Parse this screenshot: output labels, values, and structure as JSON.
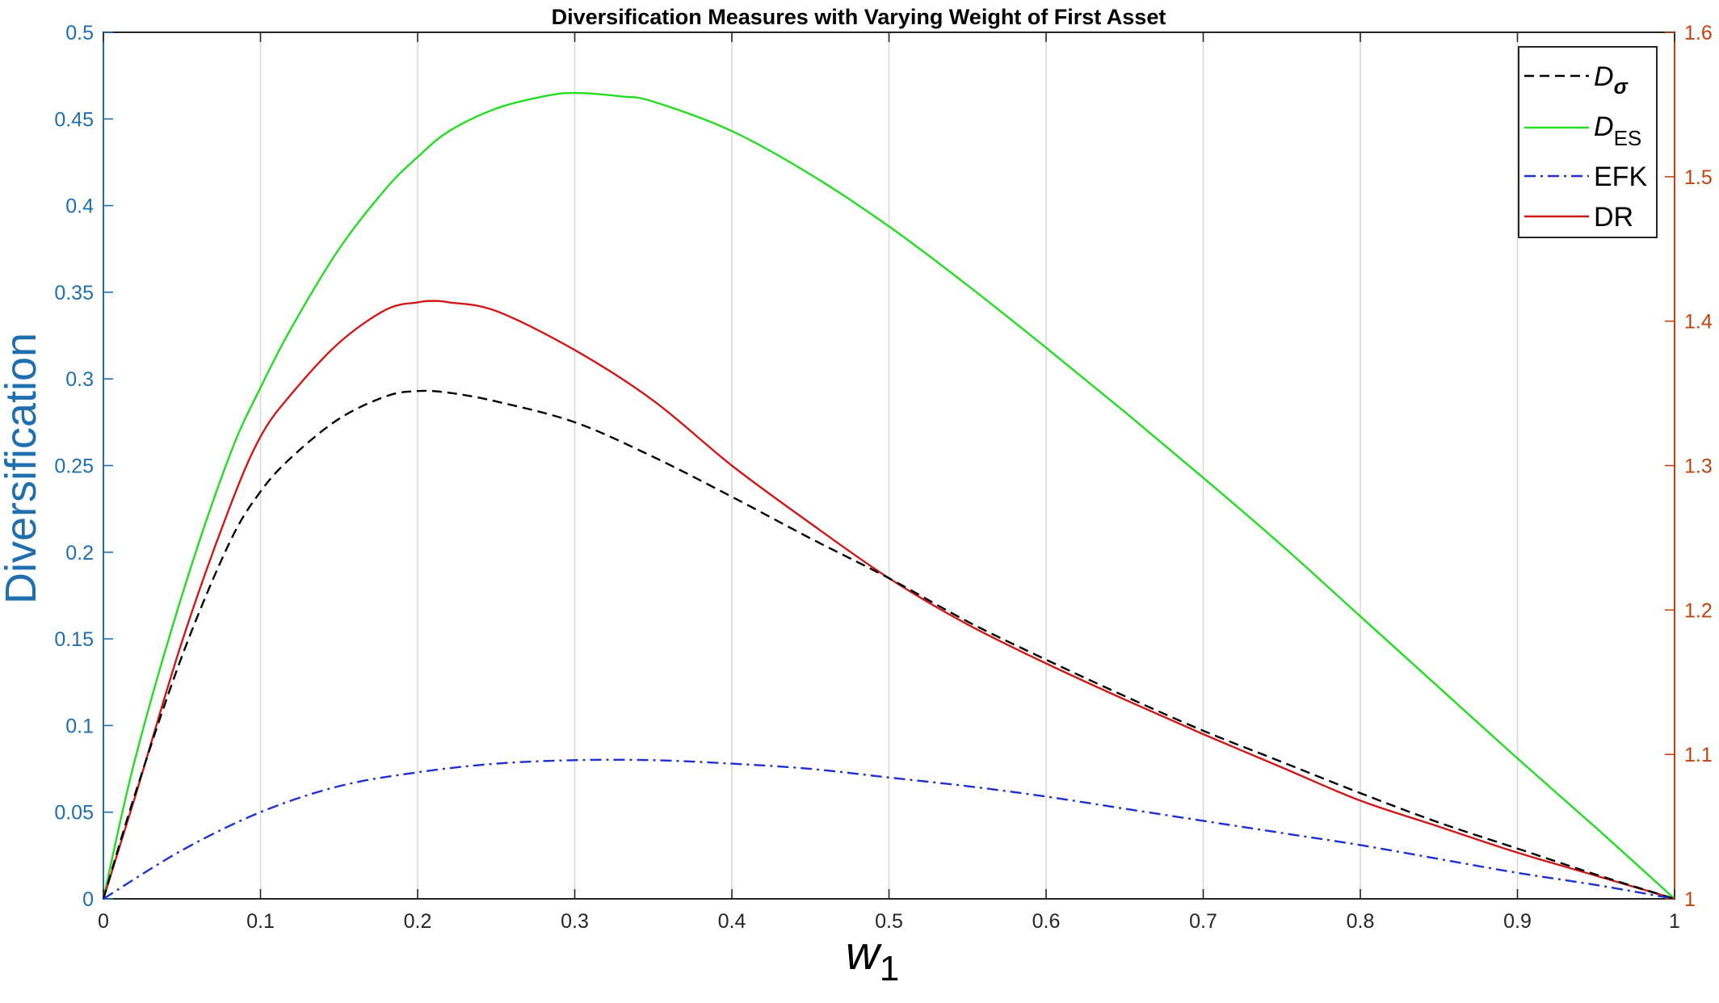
{
  "chart_data": {
    "type": "line",
    "title": "Diversification Measures with Varying Weight of First Asset",
    "xlabel": {
      "base": "w",
      "sub": "1"
    },
    "ylabel": "Diversification",
    "xlim": [
      0,
      1
    ],
    "ylim": [
      0,
      0.5
    ],
    "y2lim": [
      1,
      1.6
    ],
    "grid": "vertical",
    "legend_position": "top-right",
    "x_ticks": [
      "0",
      "0.1",
      "0.2",
      "0.3",
      "0.4",
      "0.5",
      "0.6",
      "0.7",
      "0.8",
      "0.9",
      "1"
    ],
    "y_ticks": [
      "0",
      "0.05",
      "0.1",
      "0.15",
      "0.2",
      "0.25",
      "0.3",
      "0.35",
      "0.4",
      "0.45",
      "0.5"
    ],
    "y2_ticks": [
      "1",
      "1.1",
      "1.2",
      "1.3",
      "1.4",
      "1.5",
      "1.6"
    ],
    "axis_colors": {
      "left": "#1f6fb0",
      "right": "#c1440e"
    },
    "series": [
      {
        "name": "D_σ",
        "label_base": "D",
        "label_sub": "σ",
        "color": "#000000",
        "dash": "dashed",
        "axis": "left",
        "x": [
          0,
          0.02,
          0.05,
          0.08,
          0.1,
          0.12,
          0.15,
          0.18,
          0.2,
          0.22,
          0.25,
          0.3,
          0.35,
          0.4,
          0.45,
          0.5,
          0.55,
          0.6,
          0.65,
          0.7,
          0.75,
          0.8,
          0.85,
          0.9,
          0.95,
          1.0
        ],
        "values": [
          0,
          0.06,
          0.14,
          0.205,
          0.235,
          0.255,
          0.277,
          0.29,
          0.293,
          0.292,
          0.287,
          0.275,
          0.255,
          0.232,
          0.208,
          0.185,
          0.16,
          0.138,
          0.117,
          0.097,
          0.079,
          0.061,
          0.044,
          0.029,
          0.014,
          0
        ]
      },
      {
        "name": "D_ES",
        "label_base": "D",
        "label_sub": "ES",
        "color": "#22dd22",
        "dash": "solid",
        "axis": "left",
        "x": [
          0,
          0.02,
          0.05,
          0.08,
          0.1,
          0.12,
          0.15,
          0.18,
          0.2,
          0.22,
          0.25,
          0.28,
          0.3,
          0.33,
          0.35,
          0.4,
          0.45,
          0.5,
          0.55,
          0.6,
          0.65,
          0.7,
          0.75,
          0.8,
          0.85,
          0.9,
          0.95,
          1.0
        ],
        "values": [
          0,
          0.08,
          0.175,
          0.255,
          0.295,
          0.33,
          0.375,
          0.41,
          0.428,
          0.443,
          0.456,
          0.463,
          0.465,
          0.463,
          0.46,
          0.443,
          0.418,
          0.388,
          0.354,
          0.318,
          0.281,
          0.243,
          0.204,
          0.163,
          0.122,
          0.081,
          0.041,
          0
        ]
      },
      {
        "name": "EFK",
        "label_base": "EFK",
        "label_sub": "",
        "color": "#1f2fd0",
        "dash": "dashdot",
        "axis": "left",
        "x": [
          0,
          0.05,
          0.1,
          0.15,
          0.2,
          0.25,
          0.3,
          0.35,
          0.4,
          0.45,
          0.5,
          0.55,
          0.6,
          0.65,
          0.7,
          0.75,
          0.8,
          0.85,
          0.9,
          0.95,
          1.0
        ],
        "values": [
          0,
          0.028,
          0.05,
          0.065,
          0.073,
          0.078,
          0.08,
          0.08,
          0.078,
          0.075,
          0.07,
          0.065,
          0.059,
          0.052,
          0.045,
          0.038,
          0.031,
          0.023,
          0.015,
          0.008,
          0
        ]
      },
      {
        "name": "DR",
        "label_base": "DR",
        "label_sub": "",
        "color": "#d01818",
        "dash": "solid",
        "axis": "right",
        "x": [
          0,
          0.02,
          0.05,
          0.08,
          0.1,
          0.12,
          0.15,
          0.18,
          0.2,
          0.21,
          0.22,
          0.25,
          0.3,
          0.35,
          0.4,
          0.45,
          0.5,
          0.55,
          0.6,
          0.65,
          0.7,
          0.75,
          0.8,
          0.85,
          0.9,
          0.95,
          1.0
        ],
        "values": [
          1.0,
          1.07,
          1.178,
          1.27,
          1.32,
          1.35,
          1.385,
          1.408,
          1.413,
          1.414,
          1.413,
          1.407,
          1.38,
          1.345,
          1.3,
          1.26,
          1.222,
          1.19,
          1.163,
          1.138,
          1.114,
          1.091,
          1.068,
          1.05,
          1.032,
          1.016,
          1.0
        ]
      }
    ]
  }
}
